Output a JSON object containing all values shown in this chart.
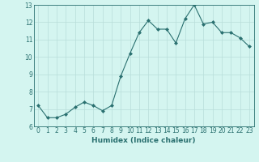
{
  "xlabel": "Humidex (Indice chaleur)",
  "x": [
    0,
    1,
    2,
    3,
    4,
    5,
    6,
    7,
    8,
    9,
    10,
    11,
    12,
    13,
    14,
    15,
    16,
    17,
    18,
    19,
    20,
    21,
    22,
    23
  ],
  "y": [
    7.2,
    6.5,
    6.5,
    6.7,
    7.1,
    7.4,
    7.2,
    6.9,
    7.2,
    8.9,
    10.2,
    11.4,
    12.1,
    11.6,
    11.6,
    10.8,
    12.2,
    13.0,
    11.9,
    12.0,
    11.4,
    11.4,
    11.1,
    10.6
  ],
  "line_color": "#2a7070",
  "marker": "D",
  "marker_size": 2,
  "bg_color": "#d4f5f0",
  "grid_color": "#b8deda",
  "ylim": [
    6,
    13
  ],
  "yticks": [
    6,
    7,
    8,
    9,
    10,
    11,
    12,
    13
  ],
  "xticks": [
    0,
    1,
    2,
    3,
    4,
    5,
    6,
    7,
    8,
    9,
    10,
    11,
    12,
    13,
    14,
    15,
    16,
    17,
    18,
    19,
    20,
    21,
    22,
    23
  ],
  "label_color": "#2a7070",
  "tick_color": "#2a7070",
  "spine_color": "#2a7070",
  "tick_fontsize": 5.5,
  "xlabel_fontsize": 6.5
}
